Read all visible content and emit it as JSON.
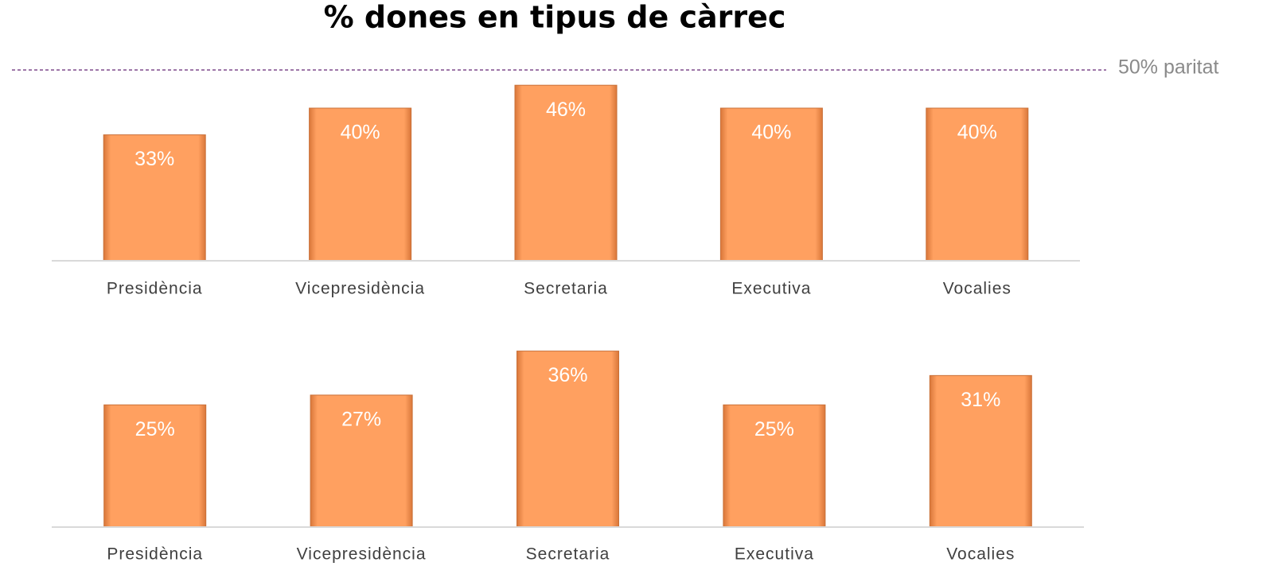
{
  "title": "% dones en tipus de càrrec",
  "chart_data": [
    {
      "type": "bar",
      "categories": [
        "Presidència",
        "Vicepresidència",
        "Secretaria",
        "Executiva",
        "Vocalies"
      ],
      "values": [
        33,
        40,
        46,
        40,
        40
      ],
      "value_labels": [
        "33%",
        "40%",
        "46%",
        "40%",
        "40%"
      ],
      "color": "#ffa060",
      "ylim": [
        0,
        50
      ],
      "reference": {
        "value": 50,
        "label": "50% paritat",
        "color": "#7e4a8c"
      }
    },
    {
      "type": "bar",
      "categories": [
        "Presidència",
        "Vicepresidència",
        "Secretaria",
        "Executiva",
        "Vocalies"
      ],
      "values": [
        25,
        27,
        36,
        25,
        31
      ],
      "value_labels": [
        "25%",
        "27%",
        "36%",
        "25%",
        "31%"
      ],
      "color": "#ffa060",
      "ylim": [
        0,
        40
      ]
    }
  ]
}
